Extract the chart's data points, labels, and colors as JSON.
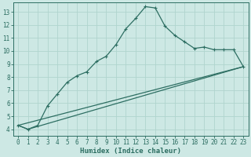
{
  "xlabel": "Humidex (Indice chaleur)",
  "bg_color": "#cde8e4",
  "grid_color": "#b0d4ce",
  "line_color": "#2d6e62",
  "xlim": [
    -0.5,
    23.5
  ],
  "ylim": [
    3.5,
    13.7
  ],
  "xticks": [
    0,
    1,
    2,
    3,
    4,
    5,
    6,
    7,
    8,
    9,
    10,
    11,
    12,
    13,
    14,
    15,
    16,
    17,
    18,
    19,
    20,
    21,
    22,
    23
  ],
  "yticks": [
    4,
    5,
    6,
    7,
    8,
    9,
    10,
    11,
    12,
    13
  ],
  "series1_x": [
    0,
    1,
    2,
    3,
    4,
    5,
    6,
    7,
    8,
    9,
    10,
    11,
    12,
    13,
    14,
    15,
    16,
    17,
    18,
    19,
    20,
    21,
    22,
    23
  ],
  "series1_y": [
    4.3,
    4.0,
    4.3,
    5.8,
    6.7,
    7.6,
    8.1,
    8.4,
    9.2,
    9.6,
    10.5,
    11.7,
    12.5,
    13.4,
    13.3,
    11.9,
    11.2,
    10.7,
    10.2,
    10.3,
    10.1,
    10.1,
    10.1,
    8.8
  ],
  "series2_x": [
    0,
    1,
    23
  ],
  "series2_y": [
    4.3,
    4.0,
    8.8
  ],
  "series3_x": [
    0,
    23
  ],
  "series3_y": [
    4.3,
    8.8
  ]
}
